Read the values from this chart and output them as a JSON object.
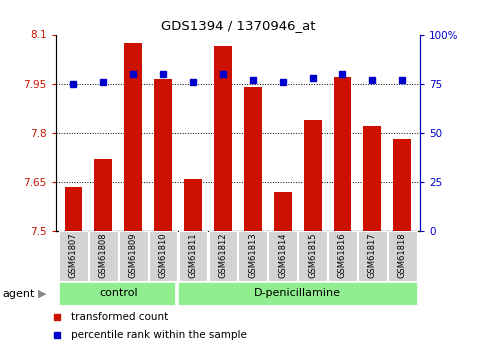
{
  "title": "GDS1394 / 1370946_at",
  "samples": [
    "GSM61807",
    "GSM61808",
    "GSM61809",
    "GSM61810",
    "GSM61811",
    "GSM61812",
    "GSM61813",
    "GSM61814",
    "GSM61815",
    "GSM61816",
    "GSM61817",
    "GSM61818"
  ],
  "bar_values": [
    7.635,
    7.72,
    8.075,
    7.965,
    7.66,
    8.065,
    7.94,
    7.62,
    7.84,
    7.97,
    7.82,
    7.78
  ],
  "percentile_values": [
    75,
    76,
    80,
    80,
    76,
    80,
    77,
    76,
    78,
    80,
    77,
    77
  ],
  "bar_color": "#cc1100",
  "percentile_color": "#0000cc",
  "ylim_left": [
    7.5,
    8.1
  ],
  "ylim_right": [
    0,
    100
  ],
  "yticks_left": [
    7.5,
    7.65,
    7.8,
    7.95,
    8.1
  ],
  "ytick_labels_left": [
    "7.5",
    "7.65",
    "7.8",
    "7.95",
    "8.1"
  ],
  "yticks_right": [
    0,
    25,
    50,
    75,
    100
  ],
  "ytick_labels_right": [
    "0",
    "25",
    "50",
    "75",
    "100%"
  ],
  "hlines": [
    7.65,
    7.8,
    7.95
  ],
  "control_n": 4,
  "control_label": "control",
  "treatment_label": "D-penicillamine",
  "agent_label": "agent",
  "legend_bar_label": "transformed count",
  "legend_pct_label": "percentile rank within the sample",
  "group_bg_color": "#90ee90",
  "tick_bg_color": "#d3d3d3",
  "bar_bottom": 7.5,
  "bar_width": 0.6
}
